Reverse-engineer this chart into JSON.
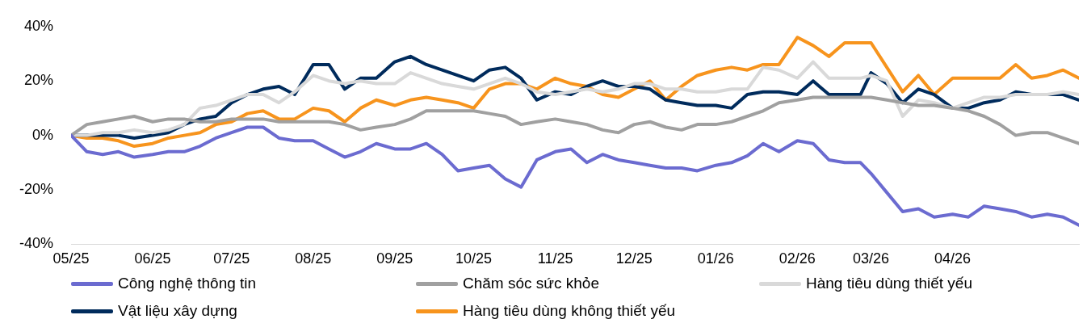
{
  "chart_data": {
    "type": "line",
    "x": [
      "2025-05-01",
      "2025-05-07",
      "2025-05-13",
      "2025-05-19",
      "2025-05-25",
      "2025-06-01",
      "2025-06-07",
      "2025-06-13",
      "2025-06-19",
      "2025-06-25",
      "2025-07-01",
      "2025-07-07",
      "2025-07-13",
      "2025-07-19",
      "2025-07-25",
      "2025-08-01",
      "2025-08-07",
      "2025-08-13",
      "2025-08-19",
      "2025-08-25",
      "2025-09-01",
      "2025-09-07",
      "2025-09-13",
      "2025-09-19",
      "2025-09-25",
      "2025-10-01",
      "2025-10-07",
      "2025-10-13",
      "2025-10-19",
      "2025-10-25",
      "2025-11-01",
      "2025-11-07",
      "2025-11-13",
      "2025-11-19",
      "2025-11-25",
      "2025-12-01",
      "2025-12-07",
      "2025-12-13",
      "2025-12-19",
      "2025-12-25",
      "2026-01-01",
      "2026-01-07",
      "2026-01-13",
      "2026-01-19",
      "2026-01-25",
      "2026-02-01",
      "2026-02-07",
      "2026-02-13",
      "2026-02-19",
      "2026-02-25",
      "2026-03-01",
      "2026-03-07",
      "2026-03-13",
      "2026-03-19",
      "2026-03-25",
      "2026-04-01",
      "2026-04-07",
      "2026-04-13",
      "2026-04-19",
      "2026-04-25",
      "2026-05-01",
      "2026-05-07",
      "2026-05-13",
      "2026-05-19"
    ],
    "series": [
      {
        "name": "Công nghệ thông tin",
        "color": "#6b6bd0",
        "values": [
          0,
          -6,
          -7,
          -6,
          -8,
          -7,
          -6,
          -6,
          -4,
          -1,
          1,
          3,
          3,
          -1,
          -2,
          -2,
          -5,
          -8,
          -6,
          -3,
          -5,
          -5,
          -3,
          -7,
          -13,
          -12,
          -11,
          -16,
          -19,
          -9,
          -6,
          -5,
          -10,
          -7,
          -9,
          -10,
          -11,
          -12,
          -12,
          -13,
          -11,
          -10,
          -7.5,
          -3,
          -6,
          -2,
          -3,
          -9,
          -10,
          -10,
          -14,
          -21,
          -28,
          -27,
          -30,
          -29,
          -30,
          -26,
          -27,
          -28,
          -30,
          -29,
          -30,
          -33
        ]
      },
      {
        "name": "Chăm sóc sức khỏe",
        "color": "#a0a0a0",
        "values": [
          0,
          4,
          5,
          6,
          7,
          5,
          6,
          6,
          5,
          5,
          6,
          6,
          6,
          5,
          5,
          5,
          5,
          4,
          2,
          3,
          4,
          6,
          9,
          9,
          9,
          9,
          8,
          7,
          4,
          5,
          6,
          5,
          4,
          2,
          1,
          4,
          5,
          3,
          2,
          4,
          4,
          5,
          7,
          9,
          12,
          13,
          14,
          14,
          14,
          14,
          14,
          13,
          12,
          11,
          11,
          10,
          9,
          7,
          4,
          0,
          1,
          1,
          -1,
          -3
        ]
      },
      {
        "name": "Hàng tiêu dùng thiết yếu",
        "color": "#d9d9d9",
        "values": [
          0,
          0,
          1,
          1,
          2,
          1,
          2,
          4,
          10,
          11,
          13,
          15,
          15,
          12,
          16,
          22,
          20,
          19,
          20,
          19,
          19,
          23,
          21,
          19,
          18,
          17,
          19,
          21,
          19,
          16,
          15,
          16,
          17,
          16,
          17,
          19,
          19,
          17,
          17,
          16,
          16,
          17,
          17,
          25,
          24,
          21,
          27,
          21,
          21,
          21,
          22,
          20,
          7,
          13,
          12,
          10,
          12,
          14,
          14,
          15,
          15,
          15,
          16,
          15
        ]
      },
      {
        "name": "Vật liệu xây dựng",
        "color": "#002b5c",
        "values": [
          0,
          0,
          0,
          0,
          -1,
          0,
          1,
          4,
          6,
          7,
          12,
          15,
          17,
          18,
          15,
          26,
          26,
          17,
          21,
          21,
          27,
          29,
          26,
          24,
          22,
          20,
          24,
          25,
          21,
          13,
          16,
          15,
          18,
          20,
          18,
          18,
          17,
          13,
          12,
          11,
          11,
          10,
          15,
          16,
          16,
          15,
          20,
          15,
          15,
          15,
          23,
          19,
          12,
          17,
          15,
          10,
          10,
          12,
          13,
          16,
          15,
          15,
          15,
          13
        ]
      },
      {
        "name": "Hàng tiêu dùng không thiết yếu",
        "color": "#f7941d",
        "values": [
          0,
          -1,
          -1,
          -2,
          -4,
          -3,
          -1,
          0,
          1,
          4,
          5,
          8,
          9,
          6,
          6,
          10,
          9,
          5,
          10,
          13,
          11,
          13,
          14,
          13,
          12,
          10,
          17,
          19,
          19,
          17,
          21,
          19,
          18,
          15,
          14,
          17,
          20,
          13,
          18,
          22,
          24,
          25,
          24,
          26,
          26,
          36,
          33,
          29,
          34,
          34,
          34,
          25,
          16,
          22,
          15,
          21,
          21,
          21,
          21,
          26,
          21,
          22,
          24,
          21
        ]
      }
    ],
    "xlim": [
      "2025-05-01",
      "2026-05-19"
    ],
    "xticks": [
      {
        "value": "2025-05-01",
        "label": "05/25"
      },
      {
        "value": "2025-06-01",
        "label": "06/25"
      },
      {
        "value": "2025-07-01",
        "label": "07/25"
      },
      {
        "value": "2025-08-01",
        "label": "08/25"
      },
      {
        "value": "2025-09-01",
        "label": "09/25"
      },
      {
        "value": "2025-10-01",
        "label": "10/25"
      },
      {
        "value": "2025-11-01",
        "label": "11/25"
      },
      {
        "value": "2025-12-01",
        "label": "12/25"
      },
      {
        "value": "2026-01-01",
        "label": "01/26"
      },
      {
        "value": "2026-02-01",
        "label": "02/26"
      },
      {
        "value": "2026-03-01",
        "label": "03/26"
      },
      {
        "value": "2026-04-01",
        "label": "04/26"
      }
    ],
    "ylim": [
      -40,
      40
    ],
    "yticks": [
      {
        "value": -40,
        "label": "-40%"
      },
      {
        "value": -20,
        "label": "-20%"
      },
      {
        "value": 0,
        "label": "0%"
      },
      {
        "value": 20,
        "label": "20%"
      },
      {
        "value": 40,
        "label": "40%"
      }
    ],
    "grid": false,
    "legend": "bottom",
    "marker": "none",
    "line_style": "solid"
  }
}
